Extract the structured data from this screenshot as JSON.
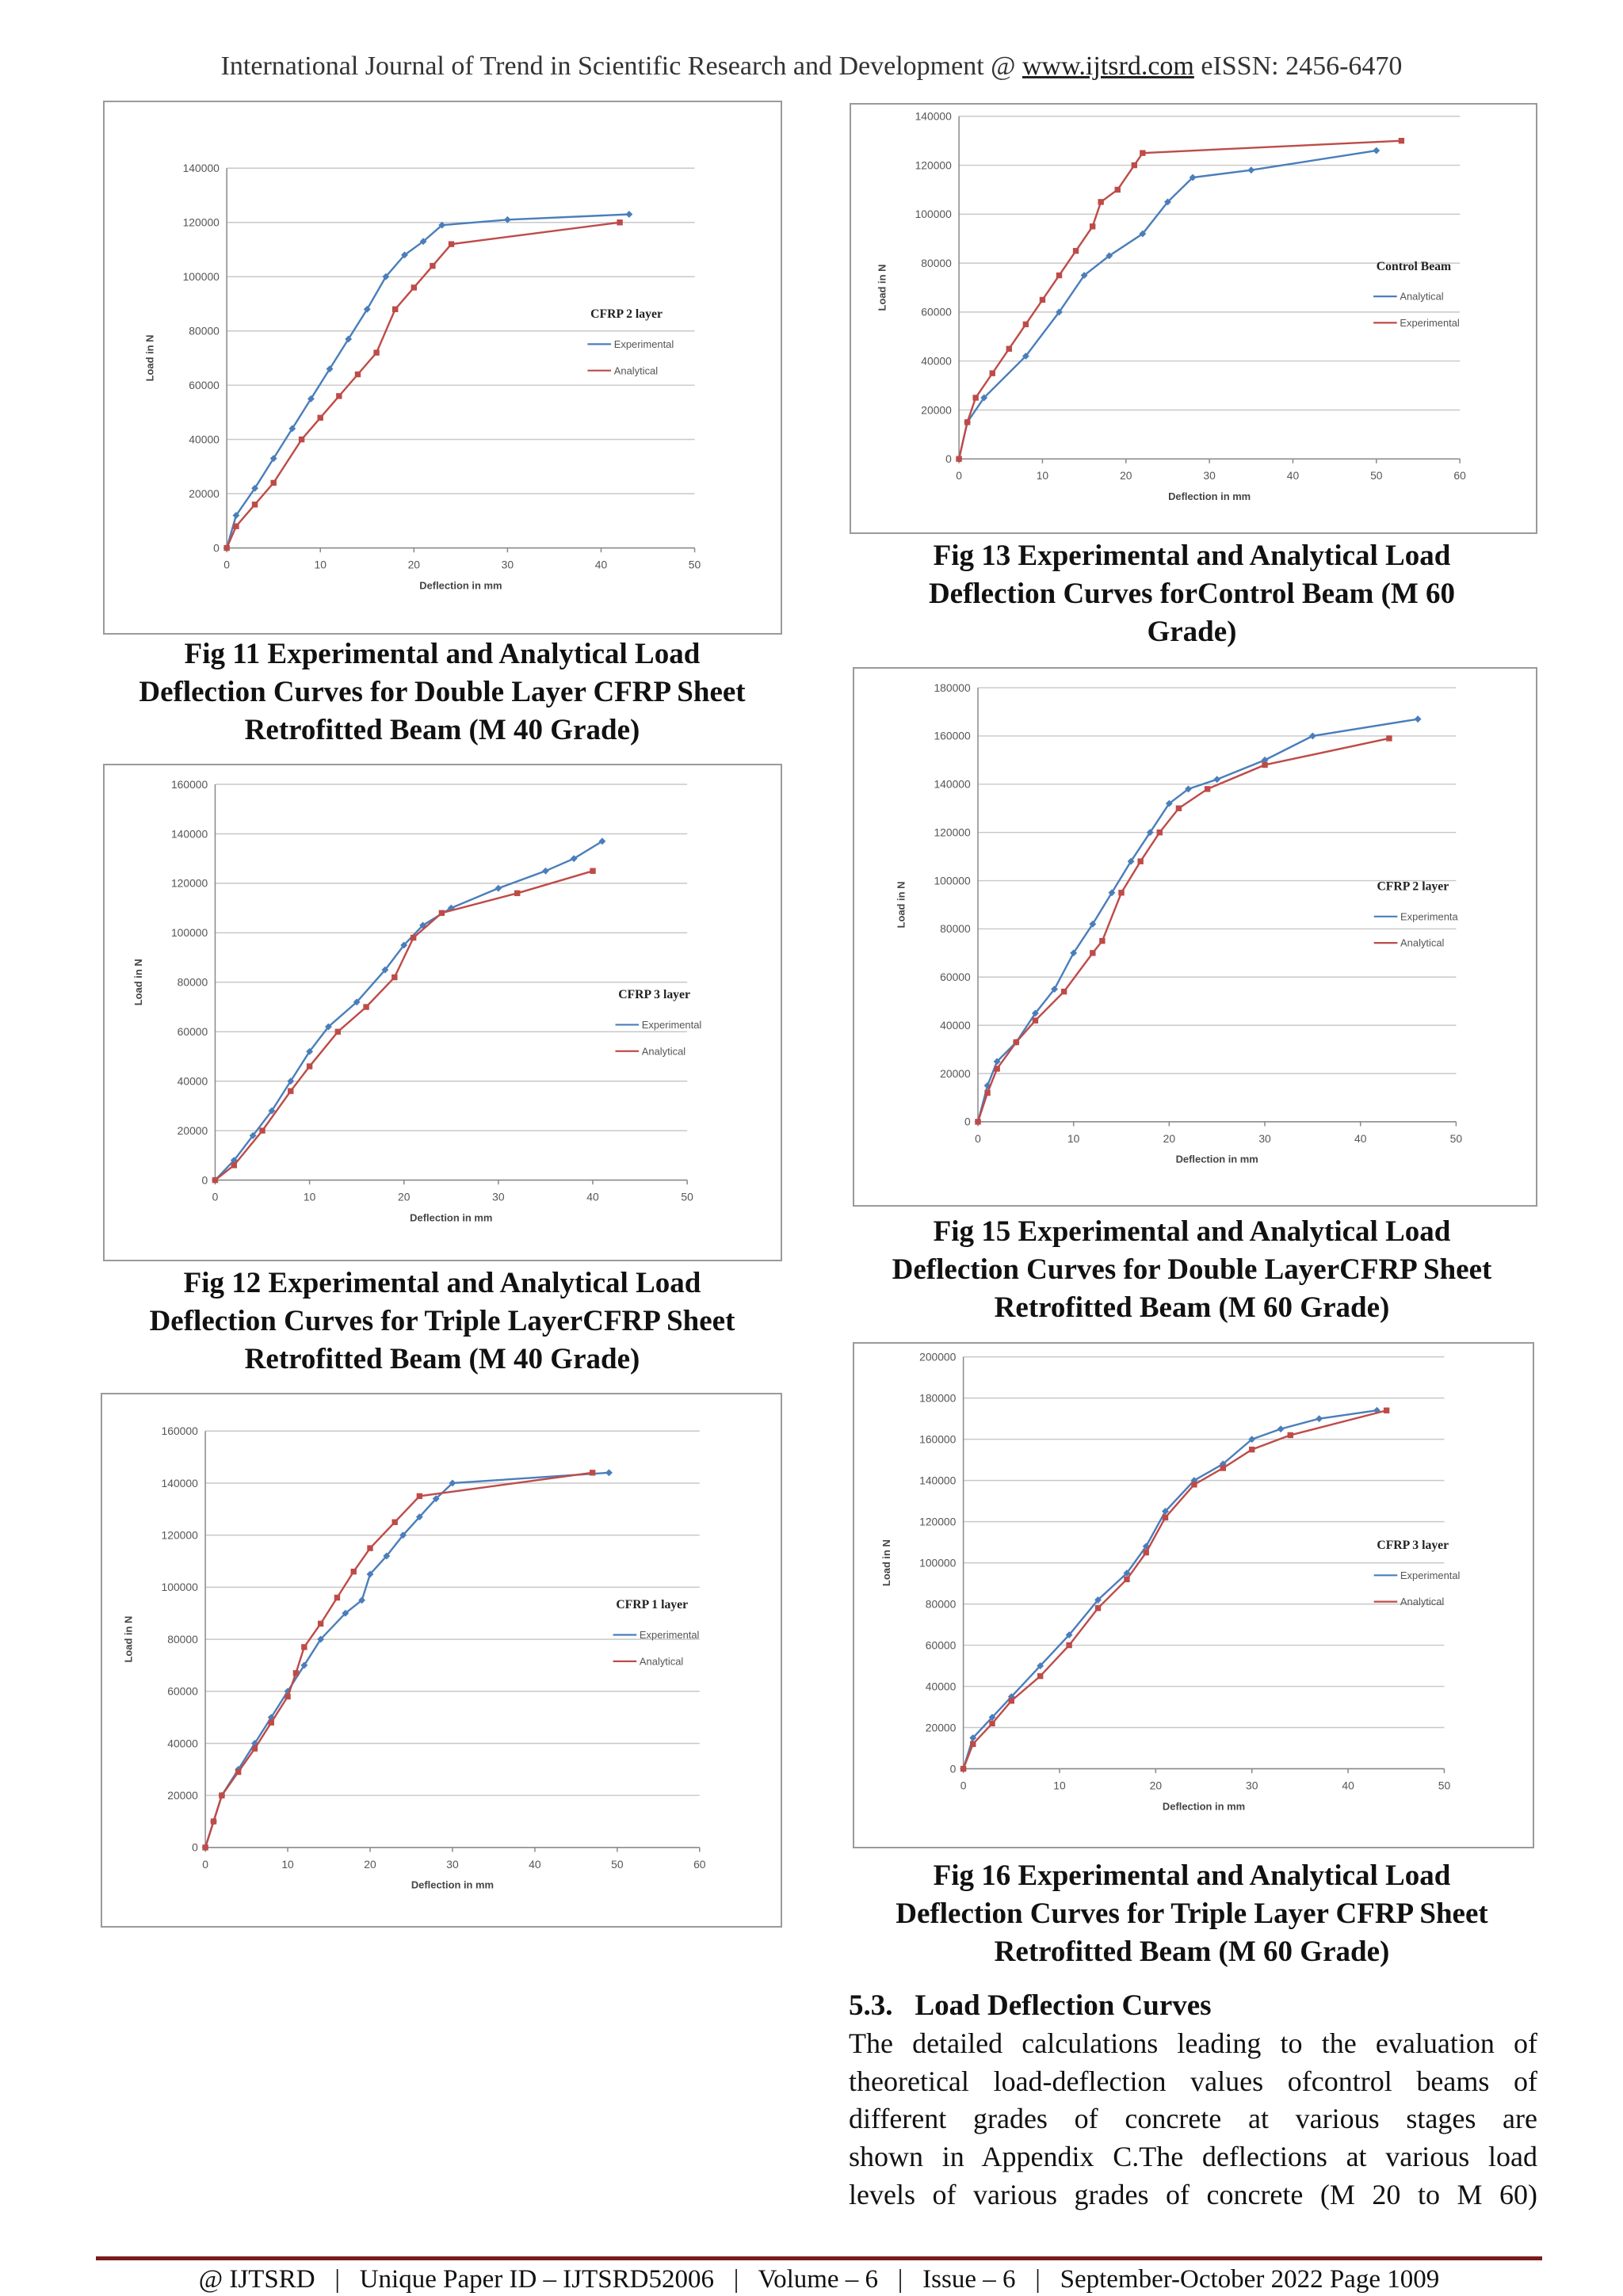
{
  "header": {
    "prefix": "International Journal of Trend in Scientific Research and Development @ ",
    "link": "www.ijtsrd.com",
    "suffix": " eISSN: 2456-6470"
  },
  "captions": [
    [
      "Fig 11 Experimental and Analytical Load",
      "Deflection Curves for Double Layer CFRP Sheet",
      "Retrofitted Beam (M 40 Grade)"
    ],
    [
      "Fig 13 Experimental and Analytical Load",
      "Deflection Curves forControl Beam (M 60",
      "Grade)"
    ],
    [
      "Fig 12 Experimental and Analytical Load",
      "Deflection Curves for Triple LayerCFRP Sheet",
      "Retrofitted Beam (M 40 Grade)"
    ],
    [
      "Fig 15 Experimental and Analytical Load",
      "Deflection Curves for Double LayerCFRP Sheet",
      "Retrofitted Beam (M 60 Grade)"
    ],
    [
      "Fig 16 Experimental and Analytical Load",
      "Deflection Curves for Triple Layer CFRP Sheet",
      "Retrofitted Beam (M 60 Grade)"
    ]
  ],
  "section": {
    "number": "5.3.",
    "title": "Load Deflection Curves",
    "lines": [
      "The detailed calculations leading to the evaluation of",
      "theoretical load-deflection values ofcontrol beams of",
      "different grades of concrete at various stages are",
      "shown in Appendix C.The deflections at various load",
      "levels of various grades of concrete (M 20 to M 60)"
    ]
  },
  "footer": "@ IJTSRD   |   Unique Paper ID – IJTSRD52006   |   Volume – 6   |   Issue – 6   |   September-October 2022 Page 1009",
  "chart_data": [
    {
      "type": "line",
      "legend_title": "CFRP 2 layer",
      "x_label": "Deflection in mm",
      "y_label": "Load in N",
      "xlim": [
        0,
        50
      ],
      "xticks": [
        0,
        10,
        20,
        30,
        40,
        50
      ],
      "ylim": [
        0,
        140000
      ],
      "yticks": [
        0,
        20000,
        40000,
        60000,
        80000,
        100000,
        120000,
        140000
      ],
      "grid": true,
      "series": [
        {
          "name": "Experimental",
          "color": "#4a7ebb",
          "marker": "diamond",
          "x": [
            0,
            1,
            3,
            5,
            7,
            9,
            11,
            13,
            15,
            17,
            19,
            21,
            23,
            30,
            43
          ],
          "values": [
            0,
            12000,
            22000,
            33000,
            44000,
            55000,
            66000,
            77000,
            88000,
            100000,
            108000,
            113000,
            119000,
            121000,
            123000
          ]
        },
        {
          "name": "Analytical",
          "color": "#be4b48",
          "marker": "square",
          "x": [
            0,
            1,
            3,
            5,
            8,
            10,
            12,
            14,
            16,
            18,
            20,
            22,
            24,
            42
          ],
          "values": [
            0,
            8000,
            16000,
            24000,
            40000,
            48000,
            56000,
            64000,
            72000,
            88000,
            96000,
            104000,
            112000,
            120000
          ]
        }
      ]
    },
    {
      "type": "line",
      "legend_title": "Control Beam",
      "x_label": "Deflection in mm",
      "y_label": "Load in N",
      "xlim": [
        0,
        60
      ],
      "xticks": [
        0,
        10,
        20,
        30,
        40,
        50,
        60
      ],
      "ylim": [
        0,
        140000
      ],
      "yticks": [
        0,
        20000,
        40000,
        60000,
        80000,
        100000,
        120000,
        140000
      ],
      "grid": true,
      "series": [
        {
          "name": "Analytical",
          "color": "#4a7ebb",
          "marker": "diamond",
          "x": [
            0,
            1,
            3,
            8,
            12,
            15,
            18,
            22,
            25,
            28,
            35,
            50
          ],
          "values": [
            0,
            15000,
            25000,
            42000,
            60000,
            75000,
            83000,
            92000,
            105000,
            115000,
            118000,
            126000
          ]
        },
        {
          "name": "Experimental",
          "color": "#be4b48",
          "marker": "square",
          "x": [
            0,
            1,
            2,
            4,
            6,
            8,
            10,
            12,
            14,
            16,
            17,
            19,
            21,
            22,
            53
          ],
          "values": [
            0,
            15000,
            25000,
            35000,
            45000,
            55000,
            65000,
            75000,
            85000,
            95000,
            105000,
            110000,
            120000,
            125000,
            130000
          ]
        }
      ]
    },
    {
      "type": "line",
      "legend_title": "CFRP 3 layer",
      "x_label": "Deflection in mm",
      "y_label": "Load in N",
      "xlim": [
        0,
        50
      ],
      "xticks": [
        0,
        10,
        20,
        30,
        40,
        50
      ],
      "ylim": [
        0,
        160000
      ],
      "yticks": [
        0,
        20000,
        40000,
        60000,
        80000,
        100000,
        120000,
        140000,
        160000
      ],
      "grid": true,
      "series": [
        {
          "name": "Experimental",
          "color": "#4a7ebb",
          "marker": "diamond",
          "x": [
            0,
            2,
            4,
            6,
            8,
            10,
            12,
            15,
            18,
            20,
            22,
            25,
            30,
            35,
            38,
            41
          ],
          "values": [
            0,
            8000,
            18000,
            28000,
            40000,
            52000,
            62000,
            72000,
            85000,
            95000,
            103000,
            110000,
            118000,
            125000,
            130000,
            137000
          ]
        },
        {
          "name": "Analytical",
          "color": "#be4b48",
          "marker": "square",
          "x": [
            0,
            2,
            5,
            8,
            10,
            13,
            16,
            19,
            21,
            24,
            32,
            40
          ],
          "values": [
            0,
            6000,
            20000,
            36000,
            46000,
            60000,
            70000,
            82000,
            98000,
            108000,
            116000,
            125000
          ]
        }
      ]
    },
    {
      "type": "line",
      "legend_title": "CFRP 2 layer",
      "x_label": "Deflection in mm",
      "y_label": "Load in N",
      "xlim": [
        0,
        50
      ],
      "xticks": [
        0,
        10,
        20,
        30,
        40,
        50
      ],
      "ylim": [
        0,
        180000
      ],
      "yticks": [
        0,
        20000,
        40000,
        60000,
        80000,
        100000,
        120000,
        140000,
        160000,
        180000
      ],
      "grid": true,
      "series": [
        {
          "name": "Experimenta",
          "color": "#4a7ebb",
          "marker": "diamond",
          "x": [
            0,
            1,
            2,
            4,
            6,
            8,
            10,
            12,
            14,
            16,
            18,
            20,
            22,
            25,
            30,
            35,
            46
          ],
          "values": [
            0,
            15000,
            25000,
            33000,
            45000,
            55000,
            70000,
            82000,
            95000,
            108000,
            120000,
            132000,
            138000,
            142000,
            150000,
            160000,
            167000
          ]
        },
        {
          "name": "Analytical",
          "color": "#be4b48",
          "marker": "square",
          "x": [
            0,
            1,
            2,
            4,
            6,
            9,
            12,
            13,
            15,
            17,
            19,
            21,
            24,
            30,
            43
          ],
          "values": [
            0,
            12000,
            22000,
            33000,
            42000,
            54000,
            70000,
            75000,
            95000,
            108000,
            120000,
            130000,
            138000,
            148000,
            159000
          ]
        }
      ]
    },
    {
      "type": "line",
      "legend_title": "CFRP 1 layer",
      "x_label": "Deflection in mm",
      "y_label": "Load in N",
      "xlim": [
        0,
        60
      ],
      "xticks": [
        0,
        10,
        20,
        30,
        40,
        50,
        60
      ],
      "ylim": [
        0,
        160000
      ],
      "yticks": [
        0,
        20000,
        40000,
        60000,
        80000,
        100000,
        120000,
        140000,
        160000
      ],
      "grid": true,
      "series": [
        {
          "name": "Experimental",
          "color": "#4a7ebb",
          "marker": "diamond",
          "x": [
            0,
            1,
            2,
            4,
            6,
            8,
            10,
            12,
            14,
            17,
            19,
            20,
            22,
            24,
            26,
            28,
            30,
            49
          ],
          "values": [
            0,
            10000,
            20000,
            30000,
            40000,
            50000,
            60000,
            70000,
            80000,
            90000,
            95000,
            105000,
            112000,
            120000,
            127000,
            134000,
            140000,
            144000
          ]
        },
        {
          "name": "Analytical",
          "color": "#be4b48",
          "marker": "square",
          "x": [
            0,
            1,
            2,
            4,
            6,
            8,
            10,
            11,
            12,
            14,
            16,
            18,
            20,
            23,
            26,
            47
          ],
          "values": [
            0,
            10000,
            20000,
            29000,
            38000,
            48000,
            58000,
            67000,
            77000,
            86000,
            96000,
            106000,
            115000,
            125000,
            135000,
            144000
          ]
        }
      ]
    },
    {
      "type": "line",
      "legend_title": "CFRP 3 layer",
      "x_label": "Deflection in mm",
      "y_label": "Load in N",
      "xlim": [
        0,
        50
      ],
      "xticks": [
        0,
        10,
        20,
        30,
        40,
        50
      ],
      "ylim": [
        0,
        200000
      ],
      "yticks": [
        0,
        20000,
        40000,
        60000,
        80000,
        100000,
        120000,
        140000,
        160000,
        180000,
        200000
      ],
      "grid": true,
      "series": [
        {
          "name": "Experimental",
          "color": "#4a7ebb",
          "marker": "diamond",
          "x": [
            0,
            1,
            3,
            5,
            8,
            11,
            14,
            17,
            19,
            21,
            24,
            27,
            30,
            33,
            37,
            43
          ],
          "values": [
            0,
            15000,
            25000,
            35000,
            50000,
            65000,
            82000,
            95000,
            108000,
            125000,
            140000,
            148000,
            160000,
            165000,
            170000,
            174000
          ]
        },
        {
          "name": "Analytical",
          "color": "#be4b48",
          "marker": "square",
          "x": [
            0,
            1,
            3,
            5,
            8,
            11,
            14,
            17,
            19,
            21,
            24,
            27,
            30,
            34,
            44
          ],
          "values": [
            0,
            12000,
            22000,
            33000,
            45000,
            60000,
            78000,
            92000,
            105000,
            122000,
            138000,
            146000,
            155000,
            162000,
            174000
          ]
        }
      ]
    }
  ]
}
